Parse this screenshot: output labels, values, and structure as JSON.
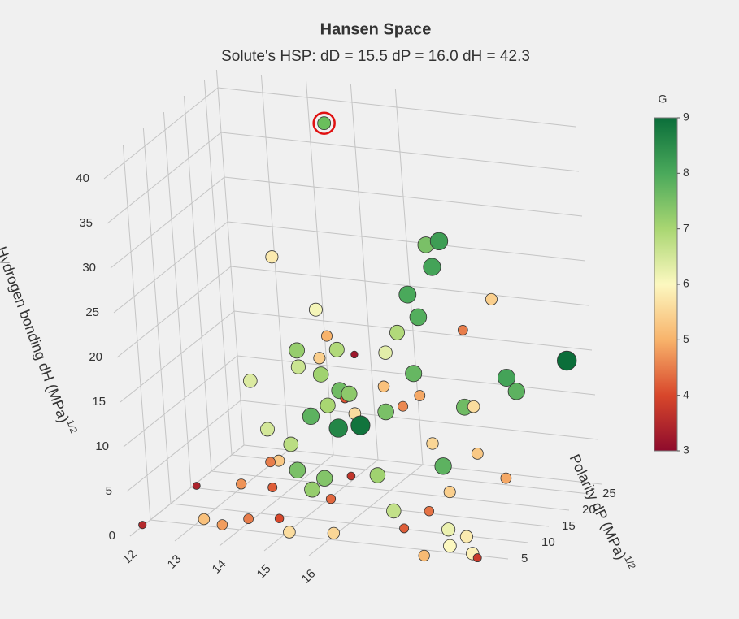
{
  "chart_data": {
    "type": "scatter3d",
    "title": "Hansen Space",
    "subtitle": "Solute's HSP: dD =  15.5  dP =  16.0  dH =  42.3",
    "y_label": "Polarity dP (MPa)",
    "y_label_sup": "1/2",
    "z_label": "Hydrogen bonding dH (MPa)",
    "z_label_sup": "1/2",
    "xlim": [
      12,
      20
    ],
    "xticks": [
      12,
      13,
      14,
      15,
      16
    ],
    "ylim": [
      0,
      28
    ],
    "yticks": [
      5,
      10,
      15,
      20,
      25
    ],
    "zlim": [
      0,
      42
    ],
    "zticks": [
      0,
      5,
      10,
      15,
      20,
      25,
      30,
      35,
      40
    ],
    "colorbar_title": "G",
    "clim": [
      3,
      9
    ],
    "cticks": [
      3,
      4,
      5,
      6,
      7,
      8,
      9
    ],
    "colorscale": [
      "#8e0b2c",
      "#d8472b",
      "#f8b36b",
      "#fcf8c0",
      "#a9d672",
      "#4aa95b",
      "#0b6e3a"
    ],
    "grid": true,
    "solute": {
      "x": 15.5,
      "y": 16.0,
      "z": 42.3,
      "color": "#6abf5c",
      "ring": "#e01010"
    },
    "series": {
      "x": [
        12.2,
        13.5,
        14.0,
        14.6,
        15.2,
        15.5,
        16.4,
        15.0,
        14.8,
        15.3,
        15.0,
        15.6,
        15.8,
        16.2,
        14.7,
        15.4,
        15.7,
        16.0,
        15.8,
        15.5,
        15.1,
        14.9,
        15.3,
        15.6,
        15.9,
        16.3,
        16.6,
        16.1,
        16.8,
        17.0,
        17.3,
        17.1,
        17.4,
        16.9,
        17.6,
        17.4,
        17.8,
        17.2,
        17.5,
        18.0,
        18.3,
        18.6,
        18.2,
        18.8,
        19.1,
        19.4,
        19.0,
        19.6,
        18.5,
        17.9,
        17.5,
        17.0,
        16.5,
        16.2,
        16.7,
        18.2,
        18.6,
        19.0,
        19.3,
        20.0,
        19.6,
        18.9,
        15.2,
        14.2,
        14.4,
        13.8,
        13.0,
        15.9,
        17.9,
        18.4,
        14.3
      ],
      "y": [
        1,
        2,
        1,
        1,
        2,
        1,
        2,
        3,
        5,
        6,
        8,
        6,
        7,
        4,
        8,
        9,
        10,
        9,
        12,
        11,
        10,
        12,
        13,
        12,
        11,
        9,
        8,
        10,
        12,
        10,
        14,
        16,
        15,
        15,
        17,
        18,
        17,
        12,
        13,
        10,
        9,
        7,
        6,
        4,
        5,
        3,
        2,
        2,
        1,
        3,
        5,
        7,
        6,
        11,
        14,
        16,
        14,
        18,
        17,
        22,
        10,
        11,
        14,
        15,
        9,
        12,
        6,
        15,
        20,
        22,
        3
      ],
      "z": [
        1,
        2,
        2,
        3,
        3,
        2,
        2,
        6,
        8,
        7,
        9,
        5,
        6,
        5,
        7,
        12,
        13,
        11,
        14,
        16,
        17,
        18,
        17,
        20,
        19,
        15,
        12,
        14,
        15,
        13,
        16,
        24,
        22,
        20,
        27,
        29,
        30,
        13,
        14,
        10,
        8,
        6,
        4,
        3,
        2,
        1,
        2,
        1,
        1,
        3,
        4,
        7,
        7,
        12,
        18,
        12,
        13,
        15,
        14,
        16,
        7,
        9,
        22,
        27,
        10,
        14,
        4,
        17,
        19,
        22,
        6
      ],
      "values": [
        3.5,
        5.2,
        4.8,
        4.5,
        4.0,
        5.6,
        5.5,
        4.2,
        4.5,
        7.5,
        6.8,
        7.2,
        7.4,
        4.3,
        5.3,
        7.8,
        7.0,
        8.6,
        7.6,
        7.1,
        6.6,
        7.2,
        5.4,
        5.0,
        6.9,
        7.3,
        8.9,
        4.1,
        5.2,
        7.5,
        7.7,
        8.0,
        7.9,
        6.9,
        8.1,
        7.5,
        8.2,
        4.6,
        4.9,
        5.5,
        7.8,
        5.4,
        4.4,
        6.2,
        5.8,
        5.9,
        6.0,
        3.8,
        5.1,
        4.2,
        6.7,
        7.1,
        3.7,
        5.6,
        6.3,
        7.6,
        5.6,
        8.1,
        7.8,
        9.0,
        4.9,
        5.3,
        6.1,
        5.8,
        6.5,
        6.4,
        3.4,
        3.2,
        4.5,
        5.4,
        4.7
      ]
    }
  }
}
